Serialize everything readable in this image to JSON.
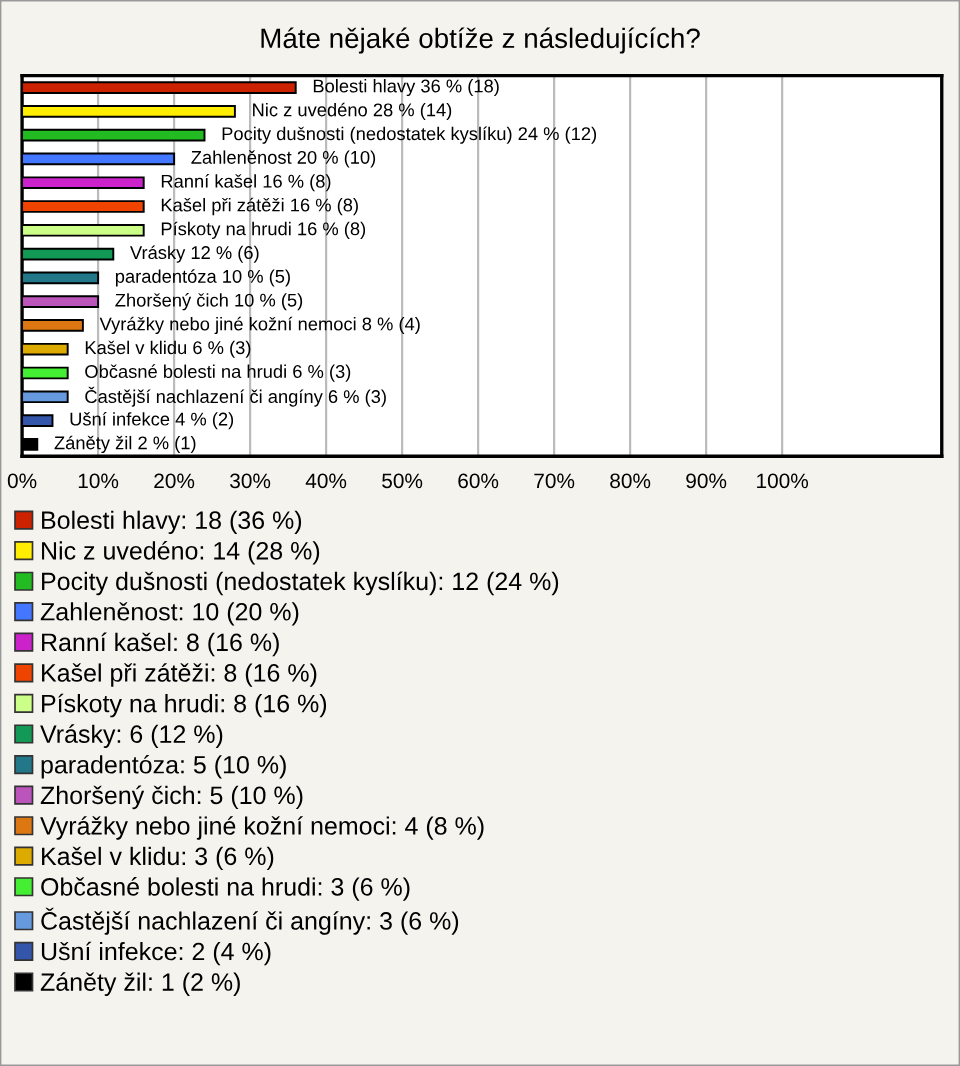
{
  "chart_data": {
    "type": "bar",
    "orientation": "horizontal",
    "title": "Máte nějaké obtíže z následujících?",
    "categories": [
      null,
      null,
      null,
      null,
      null,
      null,
      null,
      null,
      null,
      null,
      null,
      null,
      null,
      null,
      null,
      null
    ],
    "xlim": [
      0,
      121
    ],
    "xticks": [
      {
        "value": 0,
        "label": "0%"
      },
      {
        "value": 10,
        "label": "10%"
      },
      {
        "value": 20,
        "label": "20%"
      },
      {
        "value": 30,
        "label": "30%"
      },
      {
        "value": 40,
        "label": "40%"
      },
      {
        "value": 50,
        "label": "50%"
      },
      {
        "value": 60,
        "label": "60%"
      },
      {
        "value": 70,
        "label": "70%"
      },
      {
        "value": 80,
        "label": "80%"
      },
      {
        "value": 90,
        "label": "90%"
      },
      {
        "value": 100,
        "label": "100%"
      }
    ],
    "grid": "x",
    "legend": "bottom",
    "series": [
      {
        "name": "Bolesti hlavy: 18 (36 %)",
        "color": "#cc2200",
        "values": [
          36,
          null,
          null,
          null,
          null,
          null,
          null,
          null,
          null,
          null,
          null,
          null,
          null,
          null,
          null,
          null
        ],
        "value_labels": [
          "Bolesti hlavy 36 % (18)",
          null,
          null,
          null,
          null,
          null,
          null,
          null,
          null,
          null,
          null,
          null,
          null,
          null,
          null,
          null
        ]
      },
      {
        "name": "Nic z uvedéno: 14 (28 %)",
        "color": "#ffee00",
        "values": [
          null,
          28,
          null,
          null,
          null,
          null,
          null,
          null,
          null,
          null,
          null,
          null,
          null,
          null,
          null,
          null
        ],
        "value_labels": [
          null,
          "Nic z uvedéno 28 % (14)",
          null,
          null,
          null,
          null,
          null,
          null,
          null,
          null,
          null,
          null,
          null,
          null,
          null,
          null
        ]
      },
      {
        "name": "Pocity dušnosti (nedostatek kyslíku): 12 (24 %)",
        "color": "#22bb22",
        "values": [
          null,
          null,
          24,
          null,
          null,
          null,
          null,
          null,
          null,
          null,
          null,
          null,
          null,
          null,
          null,
          null
        ],
        "value_labels": [
          null,
          null,
          "Pocity dušnosti (nedostatek kyslíku) 24 % (12)",
          null,
          null,
          null,
          null,
          null,
          null,
          null,
          null,
          null,
          null,
          null,
          null,
          null
        ]
      },
      {
        "name": "Zahleněnost: 10 (20 %)",
        "color": "#4477ff",
        "values": [
          null,
          null,
          null,
          20,
          null,
          null,
          null,
          null,
          null,
          null,
          null,
          null,
          null,
          null,
          null,
          null
        ],
        "value_labels": [
          null,
          null,
          null,
          "Zahleněnost 20 % (10)",
          null,
          null,
          null,
          null,
          null,
          null,
          null,
          null,
          null,
          null,
          null,
          null
        ]
      },
      {
        "name": "Ranní kašel: 8 (16 %)",
        "color": "#cc22cc",
        "values": [
          null,
          null,
          null,
          null,
          16,
          null,
          null,
          null,
          null,
          null,
          null,
          null,
          null,
          null,
          null,
          null
        ],
        "value_labels": [
          null,
          null,
          null,
          null,
          "Ranní kašel 16 % (8)",
          null,
          null,
          null,
          null,
          null,
          null,
          null,
          null,
          null,
          null,
          null
        ]
      },
      {
        "name": "Kašel při zátěži: 8 (16 %)",
        "color": "#ee4400",
        "values": [
          null,
          null,
          null,
          null,
          null,
          16,
          null,
          null,
          null,
          null,
          null,
          null,
          null,
          null,
          null,
          null
        ],
        "value_labels": [
          null,
          null,
          null,
          null,
          null,
          "Kašel při zátěži 16 % (8)",
          null,
          null,
          null,
          null,
          null,
          null,
          null,
          null,
          null,
          null
        ]
      },
      {
        "name": "Pískoty na hrudi: 8 (16 %)",
        "color": "#ccff88",
        "values": [
          null,
          null,
          null,
          null,
          null,
          null,
          16,
          null,
          null,
          null,
          null,
          null,
          null,
          null,
          null,
          null
        ],
        "value_labels": [
          null,
          null,
          null,
          null,
          null,
          null,
          "Pískoty na hrudi 16 % (8)",
          null,
          null,
          null,
          null,
          null,
          null,
          null,
          null,
          null
        ]
      },
      {
        "name": "Vrásky: 6 (12 %)",
        "color": "#119955",
        "values": [
          null,
          null,
          null,
          null,
          null,
          null,
          null,
          12,
          null,
          null,
          null,
          null,
          null,
          null,
          null,
          null
        ],
        "value_labels": [
          null,
          null,
          null,
          null,
          null,
          null,
          null,
          "Vrásky 12 % (6)",
          null,
          null,
          null,
          null,
          null,
          null,
          null,
          null
        ]
      },
      {
        "name": "paradentóza: 5 (10 %)",
        "color": "#227788",
        "values": [
          null,
          null,
          null,
          null,
          null,
          null,
          null,
          null,
          10,
          null,
          null,
          null,
          null,
          null,
          null,
          null
        ],
        "value_labels": [
          null,
          null,
          null,
          null,
          null,
          null,
          null,
          null,
          "paradentóza 10 % (5)",
          null,
          null,
          null,
          null,
          null,
          null,
          null
        ]
      },
      {
        "name": "Zhoršený čich: 5 (10 %)",
        "color": "#bb55bb",
        "values": [
          null,
          null,
          null,
          null,
          null,
          null,
          null,
          null,
          null,
          10,
          null,
          null,
          null,
          null,
          null,
          null
        ],
        "value_labels": [
          null,
          null,
          null,
          null,
          null,
          null,
          null,
          null,
          null,
          "Zhoršený čich 10 % (5)",
          null,
          null,
          null,
          null,
          null,
          null
        ]
      },
      {
        "name": "Vyrážky nebo jiné kožní nemoci: 4 (8 %)",
        "color": "#dd7711",
        "values": [
          null,
          null,
          null,
          null,
          null,
          null,
          null,
          null,
          null,
          null,
          8,
          null,
          null,
          null,
          null,
          null
        ],
        "value_labels": [
          null,
          null,
          null,
          null,
          null,
          null,
          null,
          null,
          null,
          null,
          "Vyrážky nebo jiné kožní nemoci 8 % (4)",
          null,
          null,
          null,
          null,
          null
        ]
      },
      {
        "name": "Kašel v klidu: 3 (6 %)",
        "color": "#ddaa00",
        "values": [
          null,
          null,
          null,
          null,
          null,
          null,
          null,
          null,
          null,
          null,
          null,
          6,
          null,
          null,
          null,
          null
        ],
        "value_labels": [
          null,
          null,
          null,
          null,
          null,
          null,
          null,
          null,
          null,
          null,
          null,
          "Kašel v klidu 6 % (3)",
          null,
          null,
          null,
          null
        ]
      },
      {
        "name": "Občasné bolesti na hrudi: 3 (6 %)",
        "color": "#44ee33",
        "values": [
          null,
          null,
          null,
          null,
          null,
          null,
          null,
          null,
          null,
          null,
          null,
          null,
          6,
          null,
          null,
          null
        ],
        "value_labels": [
          null,
          null,
          null,
          null,
          null,
          null,
          null,
          null,
          null,
          null,
          null,
          null,
          "Občasné bolesti na hrudi 6 % (3)",
          null,
          null,
          null
        ]
      },
      {
        "name": "Častější nachlazení či angíny: 3 (6 %)",
        "color": "#6699dd",
        "values": [
          null,
          null,
          null,
          null,
          null,
          null,
          null,
          null,
          null,
          null,
          null,
          null,
          null,
          6,
          null,
          null
        ],
        "value_labels": [
          null,
          null,
          null,
          null,
          null,
          null,
          null,
          null,
          null,
          null,
          null,
          null,
          null,
          "Častější nachlazení či angíny 6 % (3)",
          null,
          null
        ]
      },
      {
        "name": "Ušní infekce: 2 (4 %)",
        "color": "#3355aa",
        "values": [
          null,
          null,
          null,
          null,
          null,
          null,
          null,
          null,
          null,
          null,
          null,
          null,
          null,
          null,
          4,
          null
        ],
        "value_labels": [
          null,
          null,
          null,
          null,
          null,
          null,
          null,
          null,
          null,
          null,
          null,
          null,
          null,
          null,
          "Ušní infekce 4 % (2)",
          null
        ]
      },
      {
        "name": "Záněty žil: 1 (2 %)",
        "color": "#000000",
        "values": [
          null,
          null,
          null,
          null,
          null,
          null,
          null,
          null,
          null,
          null,
          null,
          null,
          null,
          null,
          null,
          2
        ],
        "value_labels": [
          null,
          null,
          null,
          null,
          null,
          null,
          null,
          null,
          null,
          null,
          null,
          null,
          null,
          null,
          null,
          "Záněty žil 2 % (1)"
        ]
      }
    ]
  }
}
